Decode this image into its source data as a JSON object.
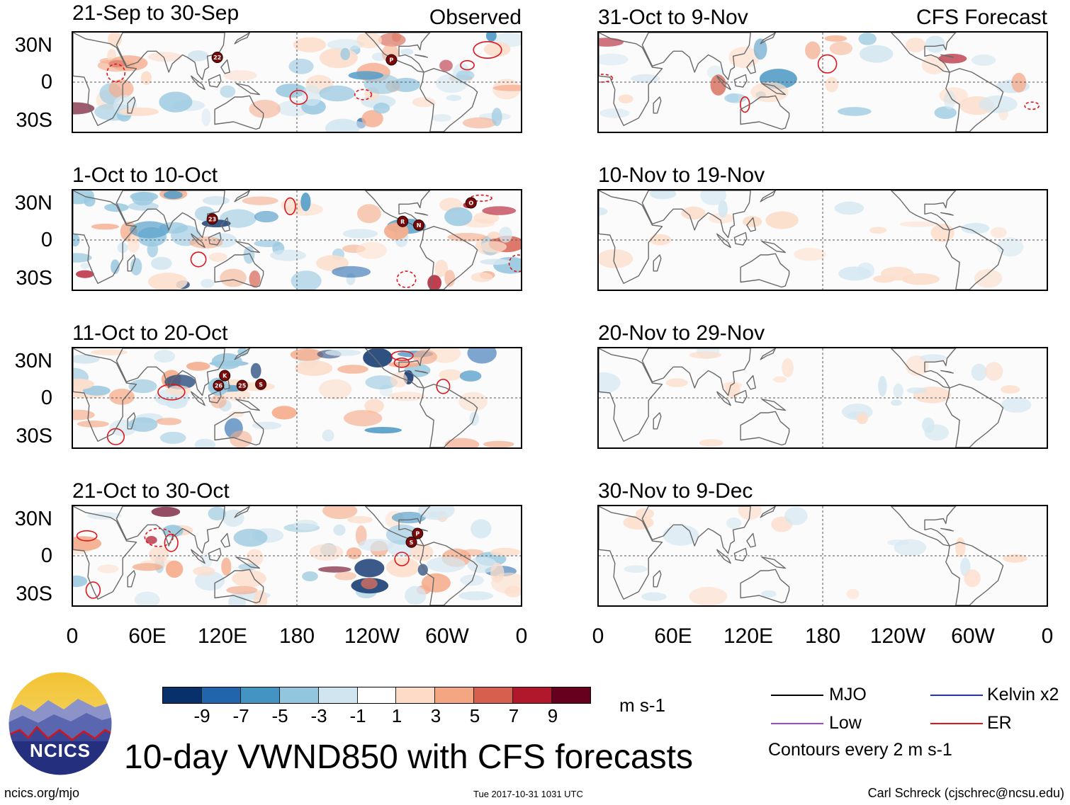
{
  "title": "10-day VWND850 with CFS forecasts",
  "column_tags": {
    "observed": "Observed",
    "forecast": "CFS Forecast"
  },
  "panels": [
    {
      "period": "21-Sep to 30-Sep",
      "column": "observed",
      "storms": [
        {
          "label": "22",
          "lon": 116,
          "lat": 20
        },
        {
          "label": "P",
          "lon": -104,
          "lat": 18
        }
      ]
    },
    {
      "period": "1-Oct to 10-Oct",
      "column": "observed",
      "storms": [
        {
          "label": "23",
          "lon": 112,
          "lat": 17
        },
        {
          "label": "R",
          "lon": -95,
          "lat": 15
        },
        {
          "label": "N",
          "lon": -82,
          "lat": 12
        },
        {
          "label": "O",
          "lon": -40,
          "lat": 30
        }
      ]
    },
    {
      "period": "11-Oct to 20-Oct",
      "column": "observed",
      "storms": [
        {
          "label": "K",
          "lon": 122,
          "lat": 18
        },
        {
          "label": "26",
          "lon": 117,
          "lat": 10
        },
        {
          "label": "25",
          "lon": 136,
          "lat": 10
        },
        {
          "label": "S",
          "lon": 151,
          "lat": 11
        }
      ]
    },
    {
      "period": "21-Oct to 30-Oct",
      "column": "observed",
      "storms": [
        {
          "label": "P",
          "lon": -83,
          "lat": 18
        },
        {
          "label": "S",
          "lon": -88,
          "lat": 11
        }
      ]
    },
    {
      "period": "31-Oct to 9-Nov",
      "column": "forecast",
      "storms": []
    },
    {
      "period": "10-Nov to 19-Nov",
      "column": "forecast",
      "storms": []
    },
    {
      "period": "20-Nov to 29-Nov",
      "column": "forecast",
      "storms": []
    },
    {
      "period": "30-Nov to 9-Dec",
      "column": "forecast",
      "storms": []
    }
  ],
  "lat_labels": [
    "30N",
    "0",
    "30S"
  ],
  "lon_labels": [
    "0",
    "60E",
    "120E",
    "180",
    "120W",
    "60W",
    "0"
  ],
  "colorbar": {
    "ticks": [
      "-9",
      "-7",
      "-5",
      "-3",
      "-1",
      "1",
      "3",
      "5",
      "7",
      "9"
    ],
    "colors": [
      "#08306b",
      "#2166ac",
      "#4393c3",
      "#92c5de",
      "#d1e5f0",
      "#ffffff",
      "#fddbc7",
      "#f4a582",
      "#d6604d",
      "#b2182b",
      "#67001f"
    ],
    "units": "m s-1"
  },
  "legend": {
    "items": [
      {
        "label": "MJO",
        "color": "#000000"
      },
      {
        "label": "Kelvin x2",
        "color": "#1f2fd0"
      },
      {
        "label": "Low",
        "color": "#a346d6"
      },
      {
        "label": "ER",
        "color": "#e0141b"
      }
    ],
    "note": "Contours every 2 m s-1"
  },
  "logo_text": "NCICS",
  "footer": {
    "url": "ncics.org/mjo",
    "timestamp": "Tue 2017-10-31 1031 UTC",
    "author": "Carl Schreck (cjschrec@ncsu.edu)"
  }
}
